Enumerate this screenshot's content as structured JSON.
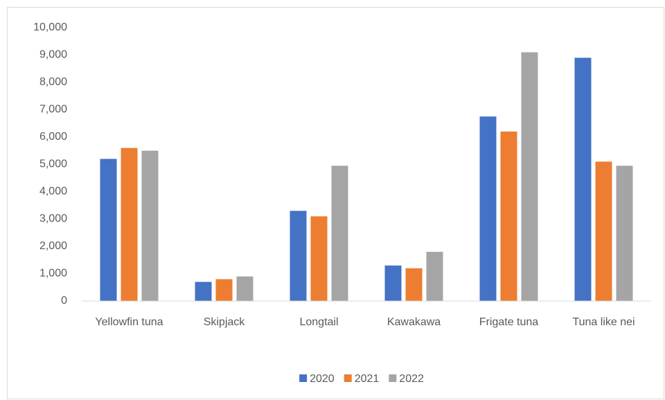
{
  "chart_data": {
    "type": "bar",
    "categories": [
      "Yellowfin tuna",
      "Skipjack",
      "Longtail",
      "Kawakawa",
      "Frigate tuna",
      "Tuna like nei"
    ],
    "series": [
      {
        "name": "2020",
        "color": "#4472c4",
        "values": [
          5200,
          700,
          3300,
          1300,
          6750,
          8900
        ]
      },
      {
        "name": "2021",
        "color": "#ed7d31",
        "values": [
          5600,
          800,
          3100,
          1200,
          6200,
          5100
        ]
      },
      {
        "name": "2022",
        "color": "#a5a5a5",
        "values": [
          5500,
          900,
          4950,
          1800,
          9100,
          4950
        ]
      }
    ],
    "ylim": [
      0,
      10000
    ],
    "yticks": [
      0,
      {
        "value": 1000,
        "label": "1,000"
      },
      {
        "value": 2000,
        "label": "2,000"
      },
      {
        "value": 3000,
        "label": "3,000"
      },
      {
        "value": 4000,
        "label": "4,000"
      },
      {
        "value": 5000,
        "label": "5,000"
      },
      {
        "value": 6000,
        "label": "6,000"
      },
      {
        "value": 7000,
        "label": "7,000"
      },
      {
        "value": 8000,
        "label": "8,000"
      },
      {
        "value": 9000,
        "label": "9,000"
      },
      {
        "value": 10000,
        "label": "10,000"
      }
    ],
    "grid": false,
    "legend": "bottom"
  }
}
